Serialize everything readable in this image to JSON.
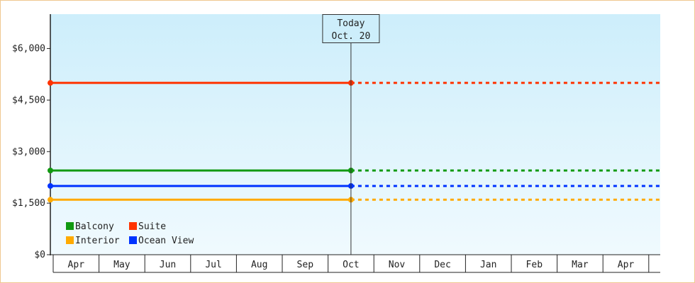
{
  "chart_data": {
    "type": "line",
    "categories": [
      "Apr",
      "May",
      "Jun",
      "Jul",
      "Aug",
      "Sep",
      "Oct",
      "Nov",
      "Dec",
      "Jan",
      "Feb",
      "Mar",
      "Apr"
    ],
    "ylim": [
      0,
      7000
    ],
    "yticks": [
      0,
      1500,
      3000,
      4500,
      6000
    ],
    "ytick_labels": [
      "$0",
      "$1,500",
      "$3,000",
      "$4,500",
      "$6,000"
    ],
    "grid": false,
    "legend_position": "bottom-left",
    "today": {
      "line1": "Today",
      "line2": "Oct. 20",
      "x": "Oct"
    },
    "series": [
      {
        "name": "Balcony",
        "color": "#119911",
        "value": 2450,
        "start": "Apr",
        "end": "Oct"
      },
      {
        "name": "Suite",
        "color": "#ff3300",
        "value": 5000,
        "start": "Apr",
        "end": "Oct"
      },
      {
        "name": "Interior",
        "color": "#ffaa00",
        "value": 1600,
        "start": "Apr",
        "end": "Oct"
      },
      {
        "name": "Ocean View",
        "color": "#0033ff",
        "value": 2000,
        "start": "Apr",
        "end": "Oct"
      }
    ],
    "background_colors": {
      "top": "#cdeefb",
      "bottom": "#f0fafe"
    }
  }
}
